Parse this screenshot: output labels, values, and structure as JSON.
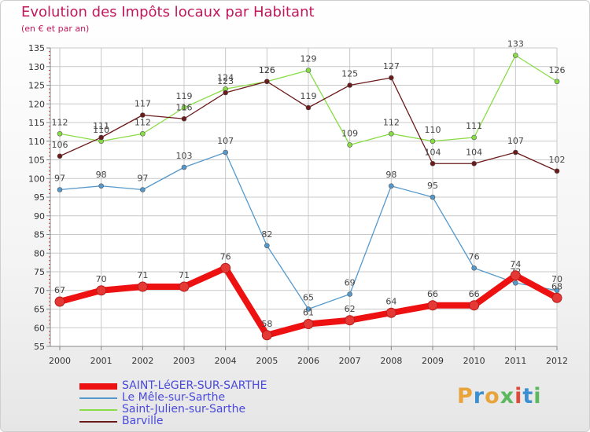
{
  "title": "Evolution des Impôts locaux par Habitant",
  "subtitle": "(en € et par an)",
  "logo_text": "Proxiti",
  "chart_data": {
    "type": "line",
    "title": "Evolution des Impôts locaux par Habitant",
    "subtitle": "(en € et par an)",
    "xlabel": "",
    "ylabel": "",
    "categories": [
      "2000",
      "2001",
      "2002",
      "2003",
      "2004",
      "2005",
      "2006",
      "2007",
      "2008",
      "2009",
      "2010",
      "2011",
      "2012"
    ],
    "ylim": [
      55,
      135
    ],
    "ytick_step": 5,
    "grid": true,
    "series": [
      {
        "name": "SAINT-LéGER-SUR-SARTHE",
        "color": "#ee1111",
        "values": [
          67,
          70,
          71,
          71,
          76,
          58,
          61,
          62,
          64,
          66,
          66,
          74,
          68
        ],
        "emphasis": true
      },
      {
        "name": "Le Mêle-sur-Sarthe",
        "color": "#5599cc",
        "values": [
          97,
          98,
          97,
          103,
          107,
          82,
          65,
          69,
          98,
          95,
          76,
          72,
          70
        ]
      },
      {
        "name": "Saint-Julien-sur-Sarthe",
        "color": "#88dd44",
        "values": [
          112,
          110,
          112,
          119,
          124,
          126,
          129,
          109,
          112,
          110,
          111,
          133,
          126
        ]
      },
      {
        "name": "Barville",
        "color": "#6b1a1a",
        "values": [
          106,
          111,
          117,
          116,
          123,
          126,
          119,
          125,
          127,
          104,
          104,
          107,
          102
        ]
      }
    ]
  }
}
